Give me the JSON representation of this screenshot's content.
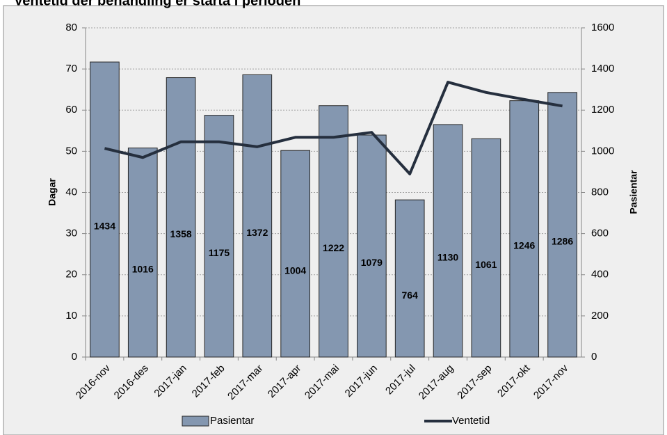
{
  "chart_data": {
    "type": "bar_line",
    "title": "Ventetid der behandling er starta i perioden",
    "categories": [
      "2016-nov",
      "2016-des",
      "2017-jan",
      "2017-feb",
      "2017-mar",
      "2017-apr",
      "2017-mai",
      "2017-jun",
      "2017-jul",
      "2017-aug",
      "2017-sep",
      "2017-okt",
      "2017-nov"
    ],
    "series": [
      {
        "name": "Pasientar",
        "type": "bar",
        "axis": "y2",
        "color": "#8497b0",
        "values": [
          1434,
          1016,
          1358,
          1175,
          1372,
          1004,
          1222,
          1079,
          764,
          1130,
          1061,
          1246,
          1286
        ]
      },
      {
        "name": "Ventetid",
        "type": "line",
        "axis": "y",
        "color": "#252f3e",
        "values": [
          50.7,
          48.5,
          52.3,
          52.3,
          51.1,
          53.4,
          53.4,
          54.6,
          44.5,
          66.8,
          64.3,
          62.6,
          61
        ]
      }
    ],
    "ylabel": "Dagar",
    "y2label": "Pasientar",
    "ylim": [
      0,
      80
    ],
    "yticks": [
      0,
      10,
      20,
      30,
      40,
      50,
      60,
      70,
      80
    ],
    "y2lim": [
      0,
      1600
    ],
    "y2ticks": [
      0,
      200,
      400,
      600,
      800,
      1000,
      1200,
      1400,
      1600
    ],
    "grid": true,
    "legend": "bottom"
  }
}
